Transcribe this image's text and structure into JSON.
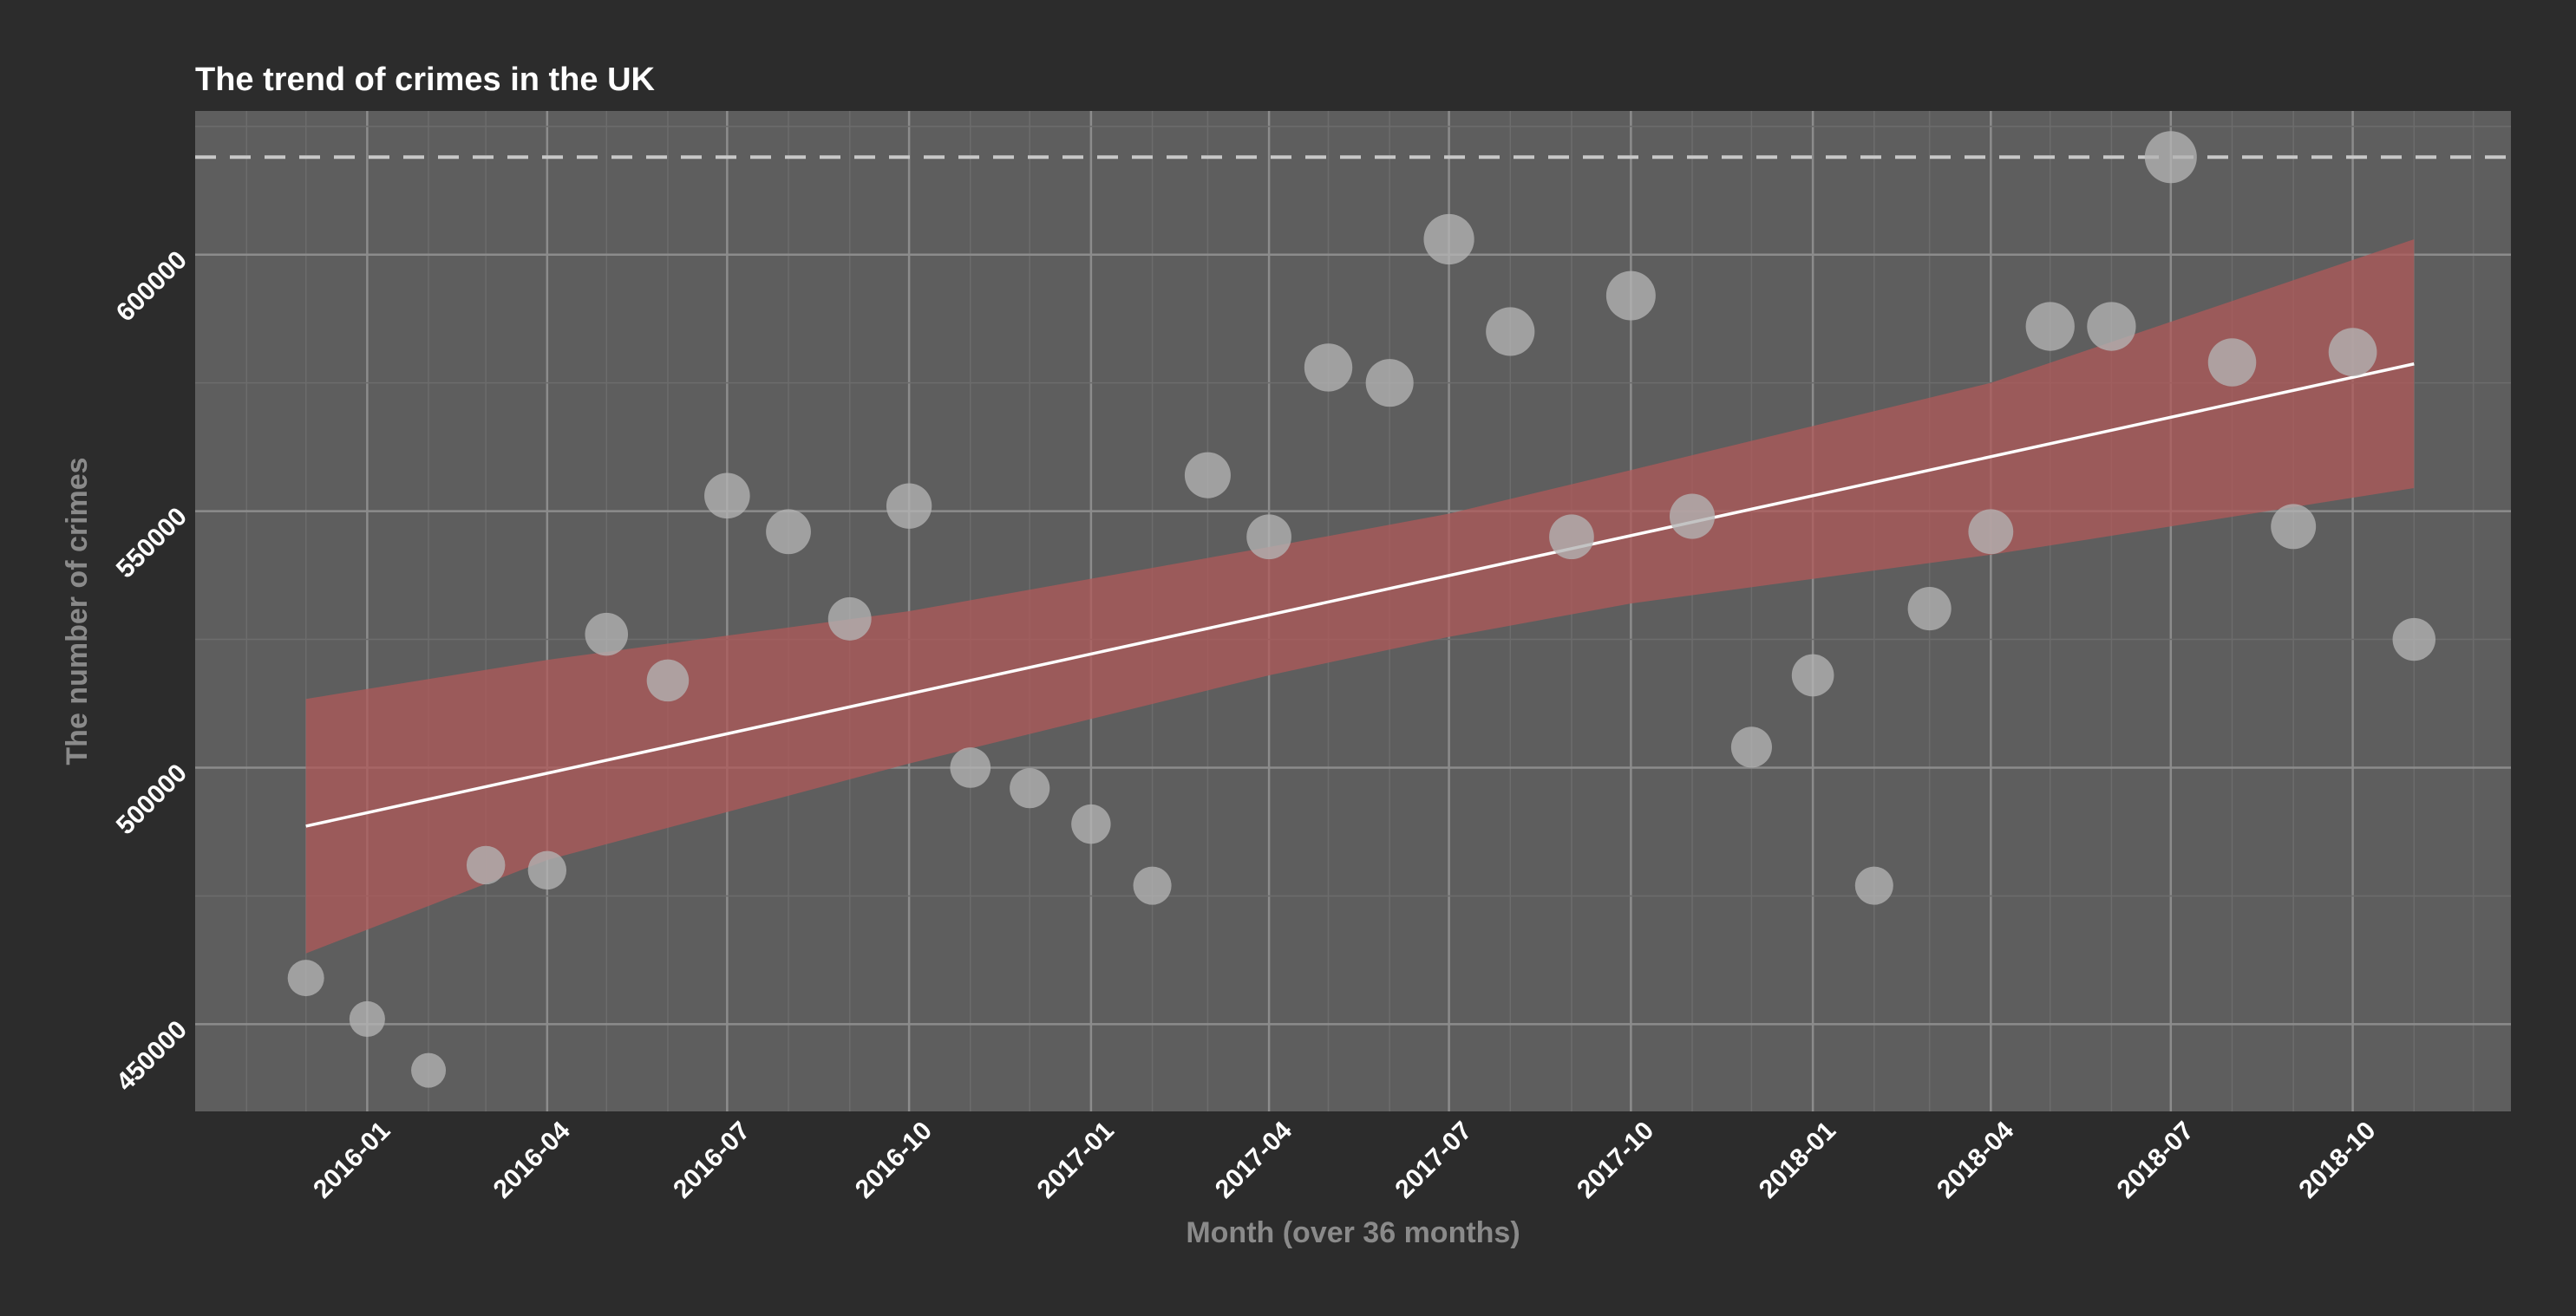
{
  "chart_data": {
    "type": "scatter",
    "title": "The trend of crimes in the UK",
    "xlabel": "Month (over 36 months)",
    "ylabel": "The number of crimes",
    "x_ticks": [
      "2016-01",
      "2016-04",
      "2016-07",
      "2016-10",
      "2017-01",
      "2017-04",
      "2017-07",
      "2017-10",
      "2018-01",
      "2018-04",
      "2018-07",
      "2018-10"
    ],
    "y_ticks": [
      450000,
      500000,
      550000,
      600000
    ],
    "xlim": [
      "2015-10-06",
      "2018-12-20"
    ],
    "ylim": [
      433000,
      628000
    ],
    "grid": true,
    "legend": "none",
    "colors": {
      "background": "#2c2c2c",
      "panel": "#5e5e5e",
      "point": "#b4b4b4",
      "point_in_band": "#d9a2a2",
      "trend_line": "#ffffff",
      "confidence_band": "#b05a5a",
      "max_line": "#c8c8c8"
    },
    "points": [
      {
        "x": "2015-12-01",
        "y": 459000
      },
      {
        "x": "2016-01-01",
        "y": 451000
      },
      {
        "x": "2016-02-01",
        "y": 441000
      },
      {
        "x": "2016-03-01",
        "y": 481000
      },
      {
        "x": "2016-04-01",
        "y": 480000
      },
      {
        "x": "2016-05-01",
        "y": 526000
      },
      {
        "x": "2016-06-01",
        "y": 517000
      },
      {
        "x": "2016-07-01",
        "y": 553000
      },
      {
        "x": "2016-08-01",
        "y": 546000
      },
      {
        "x": "2016-09-01",
        "y": 529000
      },
      {
        "x": "2016-10-01",
        "y": 551000
      },
      {
        "x": "2016-11-01",
        "y": 500000
      },
      {
        "x": "2016-12-01",
        "y": 496000
      },
      {
        "x": "2017-01-01",
        "y": 489000
      },
      {
        "x": "2017-02-01",
        "y": 477000
      },
      {
        "x": "2017-03-01",
        "y": 557000
      },
      {
        "x": "2017-04-01",
        "y": 545000
      },
      {
        "x": "2017-05-01",
        "y": 578000
      },
      {
        "x": "2017-06-01",
        "y": 575000
      },
      {
        "x": "2017-07-01",
        "y": 603000
      },
      {
        "x": "2017-08-01",
        "y": 585000
      },
      {
        "x": "2017-09-01",
        "y": 545000
      },
      {
        "x": "2017-10-01",
        "y": 592000
      },
      {
        "x": "2017-11-01",
        "y": 549000
      },
      {
        "x": "2017-12-01",
        "y": 504000
      },
      {
        "x": "2018-01-01",
        "y": 518000
      },
      {
        "x": "2018-02-01",
        "y": 477000
      },
      {
        "x": "2018-03-01",
        "y": 531000
      },
      {
        "x": "2018-04-01",
        "y": 546000
      },
      {
        "x": "2018-05-01",
        "y": 586000
      },
      {
        "x": "2018-06-01",
        "y": 586000
      },
      {
        "x": "2018-07-01",
        "y": 619000
      },
      {
        "x": "2018-08-01",
        "y": 579000
      },
      {
        "x": "2018-09-01",
        "y": 547000
      },
      {
        "x": "2018-10-01",
        "y": 581000
      },
      {
        "x": "2018-11-01",
        "y": 525000
      }
    ],
    "trend_line": {
      "x": [
        "2015-12-01",
        "2018-11-01"
      ],
      "y": [
        488600,
        578700
      ]
    },
    "confidence_band": {
      "x": [
        "2015-12-01",
        "2016-04-01",
        "2016-10-01",
        "2017-04-01",
        "2017-07-01",
        "2017-10-01",
        "2018-04-01",
        "2018-11-01"
      ],
      "lower": [
        463800,
        482000,
        500800,
        518000,
        525500,
        532000,
        541500,
        554500
      ],
      "upper": [
        513400,
        521000,
        530500,
        543000,
        549500,
        558000,
        575000,
        603000
      ]
    },
    "max_reference_line": {
      "y": 619000,
      "style": "dashed"
    }
  }
}
